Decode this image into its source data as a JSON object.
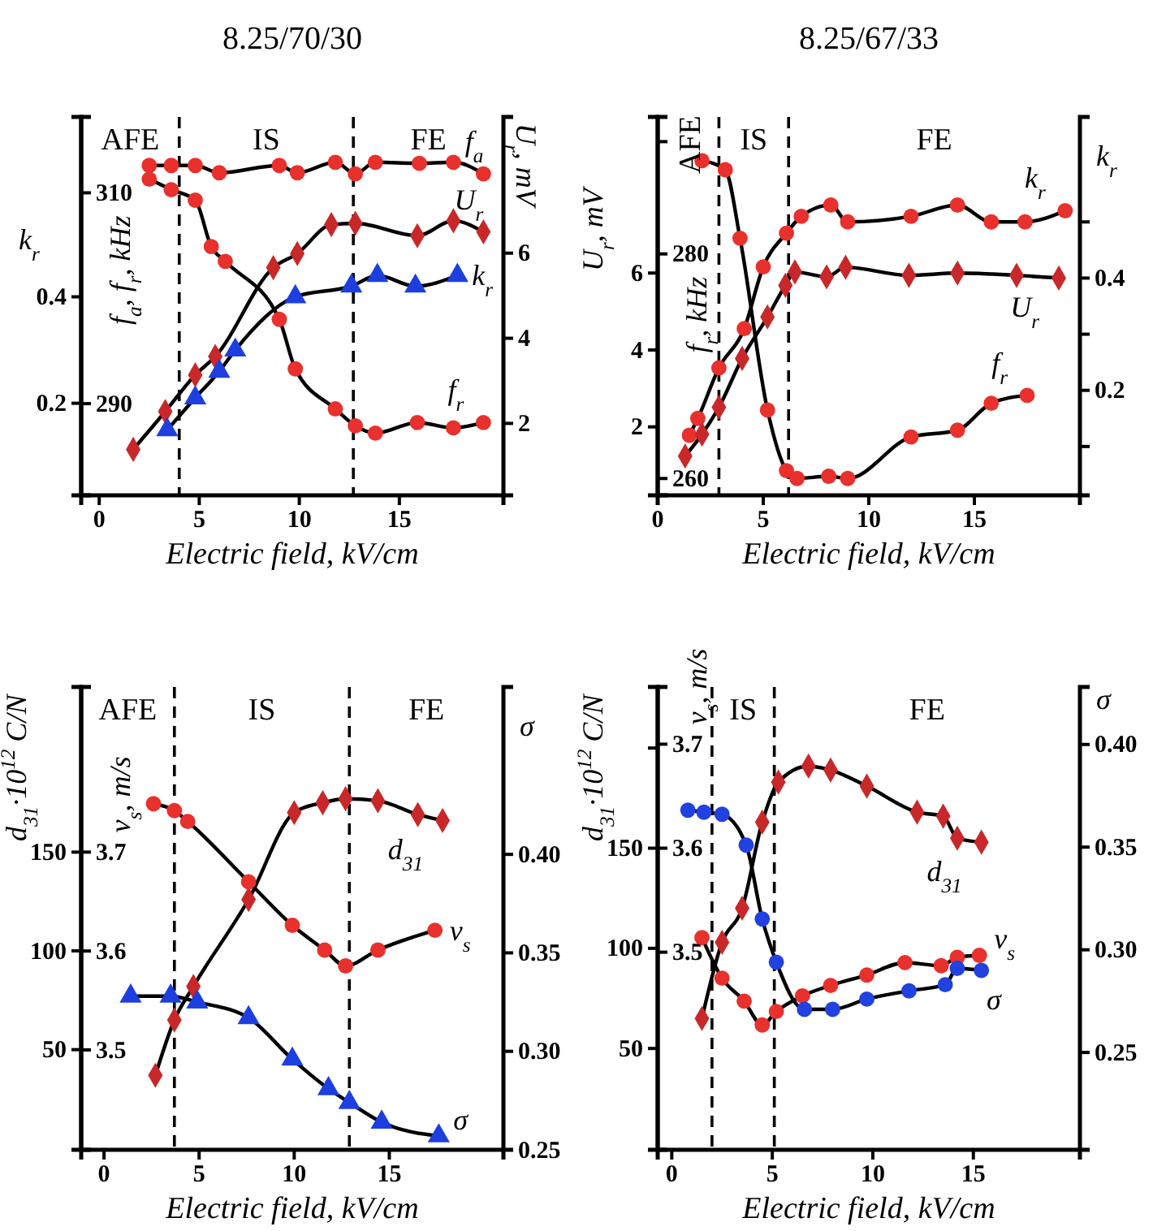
{
  "chart_data": [
    {
      "type": "line",
      "title": "8.25/70/30",
      "xlabel": "Electric field, kV/cm",
      "ylabel": "k$_{r}$",
      "y2label": "U$_{r}$, mV",
      "y3label": "f$_{a}$, f$_{r}$, kHz",
      "xlim": [
        -0.9,
        20.2
      ],
      "xticks": [
        0,
        5,
        10,
        15
      ],
      "ylim": [
        0.027,
        0.738
      ],
      "yticks": [
        0.2,
        0.4
      ],
      "y2lim": [
        0.31,
        9.2
      ],
      "y2ticks": [
        2,
        4,
        6
      ],
      "y3lim": [
        281.3,
        317.2
      ],
      "y3ticks": [
        290,
        310
      ],
      "ref_lines": [
        {
          "axis": "x",
          "value": 4.0,
          "color": "#000000",
          "line_style": "dashed"
        },
        {
          "axis": "x",
          "value": 12.7,
          "color": "#000000",
          "line_style": "dashed"
        }
      ],
      "annotations": [
        "AFE",
        "IS",
        "FE"
      ],
      "series": [
        {
          "name": "f$_{a}$",
          "marker": "circle",
          "color": "#e8302c",
          "axis": "y3",
          "x": [
            2.5,
            3.6,
            4.8,
            6.0,
            9.0,
            9.9,
            11.8,
            12.8,
            13.8,
            16.0,
            17.7,
            19.2
          ],
          "values": [
            312.6,
            312.6,
            312.6,
            311.9,
            312.6,
            311.9,
            312.9,
            311.8,
            312.9,
            312.8,
            312.9,
            311.8
          ]
        },
        {
          "name": "f$_{r}$",
          "marker": "circle",
          "color": "#e8302c",
          "axis": "y3",
          "x": [
            2.5,
            3.6,
            4.8,
            5.6,
            6.3,
            9.0,
            9.8,
            11.8,
            12.8,
            13.8,
            15.9,
            17.7,
            19.2
          ],
          "values": [
            311.3,
            310.3,
            309.3,
            304.9,
            303.5,
            298.0,
            293.3,
            289.5,
            287.9,
            287.2,
            288.2,
            287.7,
            288.2
          ]
        },
        {
          "name": "U$_{r}$",
          "marker": "diamond",
          "color": "#c8282a",
          "axis": "y2",
          "x": [
            1.7,
            3.3,
            4.8,
            5.8,
            8.7,
            9.9,
            11.6,
            12.8,
            15.9,
            17.7,
            19.2
          ],
          "values": [
            1.39,
            2.28,
            3.14,
            3.57,
            5.66,
            5.99,
            6.67,
            6.7,
            6.41,
            6.76,
            6.5
          ]
        },
        {
          "name": "k$_{r}$",
          "marker": "triangle",
          "color": "#1d3fe0",
          "axis": "y",
          "x": [
            3.4,
            4.8,
            6.0,
            6.8,
            9.8,
            12.6,
            13.9,
            15.8,
            17.9
          ],
          "values": [
            0.15,
            0.21,
            0.26,
            0.3,
            0.4,
            0.42,
            0.44,
            0.42,
            0.44
          ]
        }
      ]
    },
    {
      "type": "line",
      "title": "8.25/67/33",
      "xlabel": "Electric field, kV/cm",
      "ylabel": "U$_{r}$, mV",
      "y2label": "k$_{r}$",
      "y3label": "f$_{r}$, kHz",
      "xlim": [
        0,
        20
      ],
      "xticks": [
        0,
        5,
        10,
        15
      ],
      "ylim": [
        0.22,
        10.06
      ],
      "yticks": [
        2,
        4,
        6
      ],
      "y2lim": [
        0.013,
        0.687
      ],
      "y2ticks": [
        {
          "value": 0.1,
          "label": null
        },
        0.2,
        {
          "value": 0.3,
          "label": null
        },
        0.4,
        {
          "value": 0.5,
          "label": null
        }
      ],
      "y3lim": [
        258.5,
        292.2
      ],
      "y3ticks": [
        260,
        280,
        {
          "value": 290,
          "label": null
        }
      ],
      "ref_lines": [
        {
          "axis": "x",
          "value": 2.9,
          "color": "#000000",
          "line_style": "dashed"
        },
        {
          "axis": "x",
          "value": 6.2,
          "color": "#000000",
          "line_style": "dashed"
        }
      ],
      "annotations": [
        "AFE",
        "IS",
        "FE"
      ],
      "series": [
        {
          "name": "f$_{r}$",
          "marker": "circle",
          "color": "#e8302c",
          "axis": "y3",
          "x": [
            2.1,
            3.2,
            3.9,
            5.2,
            6.1,
            6.6,
            8.1,
            9.0,
            12.0,
            14.2,
            15.8,
            17.5
          ],
          "values": [
            288.3,
            287.5,
            281.4,
            266.1,
            260.7,
            260.0,
            260.2,
            260.0,
            263.7,
            264.3,
            266.7,
            267.4
          ]
        },
        {
          "name": "k$_{r}$",
          "marker": "circle",
          "color": "#e8302c",
          "axis": "y2",
          "x": [
            1.5,
            1.9,
            2.9,
            4.1,
            5.0,
            6.1,
            6.8,
            8.2,
            9.0,
            12.0,
            14.2,
            15.8,
            17.4,
            19.3
          ],
          "values": [
            0.12,
            0.15,
            0.24,
            0.31,
            0.42,
            0.48,
            0.51,
            0.53,
            0.5,
            0.51,
            0.53,
            0.5,
            0.5,
            0.52
          ]
        },
        {
          "name": "U$_{r}$",
          "marker": "diamond",
          "color": "#c8282a",
          "axis": "y",
          "x": [
            1.3,
            2.1,
            2.9,
            4.0,
            5.2,
            6.05,
            6.5,
            8.0,
            8.9,
            11.9,
            14.2,
            17.0,
            19.0
          ],
          "values": [
            1.24,
            1.81,
            2.51,
            3.78,
            4.86,
            5.68,
            6.03,
            5.9,
            6.15,
            5.94,
            6.0,
            5.94,
            5.87
          ]
        }
      ]
    },
    {
      "type": "line",
      "xlabel": "Electric field, kV/cm",
      "ylabel": "d$_{31}$·10$^{12}$ C/N",
      "y2label": "σ",
      "y3label": "v$_{s}$, m/s",
      "xlim": [
        -1.2,
        21
      ],
      "xticks": [
        0,
        5,
        10,
        15
      ],
      "ylim": [
        -0.7,
        233.6
      ],
      "yticks": [
        50,
        100,
        150
      ],
      "y2lim": [
        0.25,
        0.485
      ],
      "y2ticks": [
        0.25,
        {
          "value": 0.3,
          "label": "0.30"
        },
        0.35,
        {
          "value": 0.4,
          "label": "0.40"
        }
      ],
      "y3lim": [
        3.399,
        3.867
      ],
      "y3ticks": [
        3.5,
        3.6,
        3.7
      ],
      "ref_lines": [
        {
          "axis": "x",
          "value": 3.7,
          "color": "#000000",
          "line_style": "dashed"
        },
        {
          "axis": "x",
          "value": 12.9,
          "color": "#000000",
          "line_style": "dashed"
        }
      ],
      "annotations": [
        "AFE",
        "IS",
        "FE"
      ],
      "series": [
        {
          "name": "d$_{31}$",
          "marker": "diamond",
          "color": "#c8282a",
          "axis": "y",
          "x": [
            2.7,
            3.7,
            4.7,
            7.6,
            10.0,
            11.5,
            12.7,
            14.4,
            16.5,
            17.8
          ],
          "values": [
            37,
            65,
            82,
            126,
            170,
            175,
            177,
            176,
            169,
            166
          ]
        },
        {
          "name": "v$_{s}$",
          "marker": "circle",
          "color": "#e8302c",
          "axis": "y3",
          "x": [
            2.6,
            3.7,
            4.4,
            7.6,
            9.9,
            11.6,
            12.7,
            14.4,
            17.4
          ],
          "values": [
            3.749,
            3.742,
            3.731,
            3.67,
            3.626,
            3.601,
            3.585,
            3.601,
            3.621
          ]
        },
        {
          "name": "σ",
          "marker": "triangle",
          "color": "#1d3fe0",
          "axis": "y2",
          "x": [
            1.4,
            3.5,
            4.9,
            7.6,
            9.9,
            11.8,
            12.9,
            14.6,
            17.6
          ],
          "values": [
            0.328,
            0.328,
            0.325,
            0.317,
            0.296,
            0.281,
            0.274,
            0.264,
            0.257
          ]
        }
      ]
    },
    {
      "type": "line",
      "xlabel": "Electric field, kV/cm",
      "ylabel": "d$_{31}$·10$^{12}$ C/N",
      "y2label": "σ",
      "y3label": "v$_{s}$, m/s",
      "xlim": [
        -0.7,
        20.3
      ],
      "xticks": [
        0,
        5,
        10,
        15
      ],
      "ylim": [
        -0.6,
        230.5
      ],
      "yticks": [
        50,
        100,
        150,
        {
          "value": 200,
          "label": null
        }
      ],
      "y2lim": [
        0.2026,
        0.428
      ],
      "y2ticks": [
        0.25,
        {
          "value": 0.3,
          "label": "0.30"
        },
        0.35,
        {
          "value": 0.4,
          "label": "0.40"
        }
      ],
      "y3lim": [
        3.31,
        3.755
      ],
      "y3ticks": [
        3.5,
        3.6,
        3.7
      ],
      "ref_lines": [
        {
          "axis": "x",
          "value": 2.0,
          "color": "#000000",
          "line_style": "dashed"
        },
        {
          "axis": "x",
          "value": 5.1,
          "color": "#000000",
          "line_style": "dashed"
        }
      ],
      "annotations": [
        "IS",
        "FE"
      ],
      "series": [
        {
          "name": "d$_{31}$",
          "marker": "diamond",
          "color": "#c8282a",
          "axis": "y",
          "x": [
            1.5,
            2.5,
            3.5,
            4.5,
            5.3,
            6.8,
            7.9,
            9.7,
            12.2,
            13.5,
            14.2,
            15.4
          ],
          "values": [
            65,
            103,
            120,
            163,
            183,
            191,
            189,
            181,
            168,
            166,
            155,
            153
          ]
        },
        {
          "name": "v$_{s}$",
          "marker": "circle",
          "color": "#e8302c",
          "axis": "y3",
          "x": [
            1.5,
            2.5,
            3.6,
            4.5,
            5.2,
            6.5,
            7.9,
            9.7,
            11.6,
            13.4,
            14.2,
            15.3
          ],
          "values": [
            3.514,
            3.475,
            3.453,
            3.43,
            3.443,
            3.458,
            3.468,
            3.478,
            3.49,
            3.487,
            3.495,
            3.497
          ]
        },
        {
          "name": "σ",
          "marker": "circle",
          "color": "#2141e0",
          "axis": "y2",
          "x": [
            0.8,
            1.6,
            2.5,
            3.7,
            4.5,
            5.2,
            6.6,
            8.0,
            9.7,
            11.8,
            13.6,
            14.2,
            15.4
          ],
          "values": [
            0.368,
            0.367,
            0.366,
            0.351,
            0.315,
            0.294,
            0.271,
            0.271,
            0.276,
            0.28,
            0.283,
            0.291,
            0.29
          ]
        }
      ]
    }
  ]
}
